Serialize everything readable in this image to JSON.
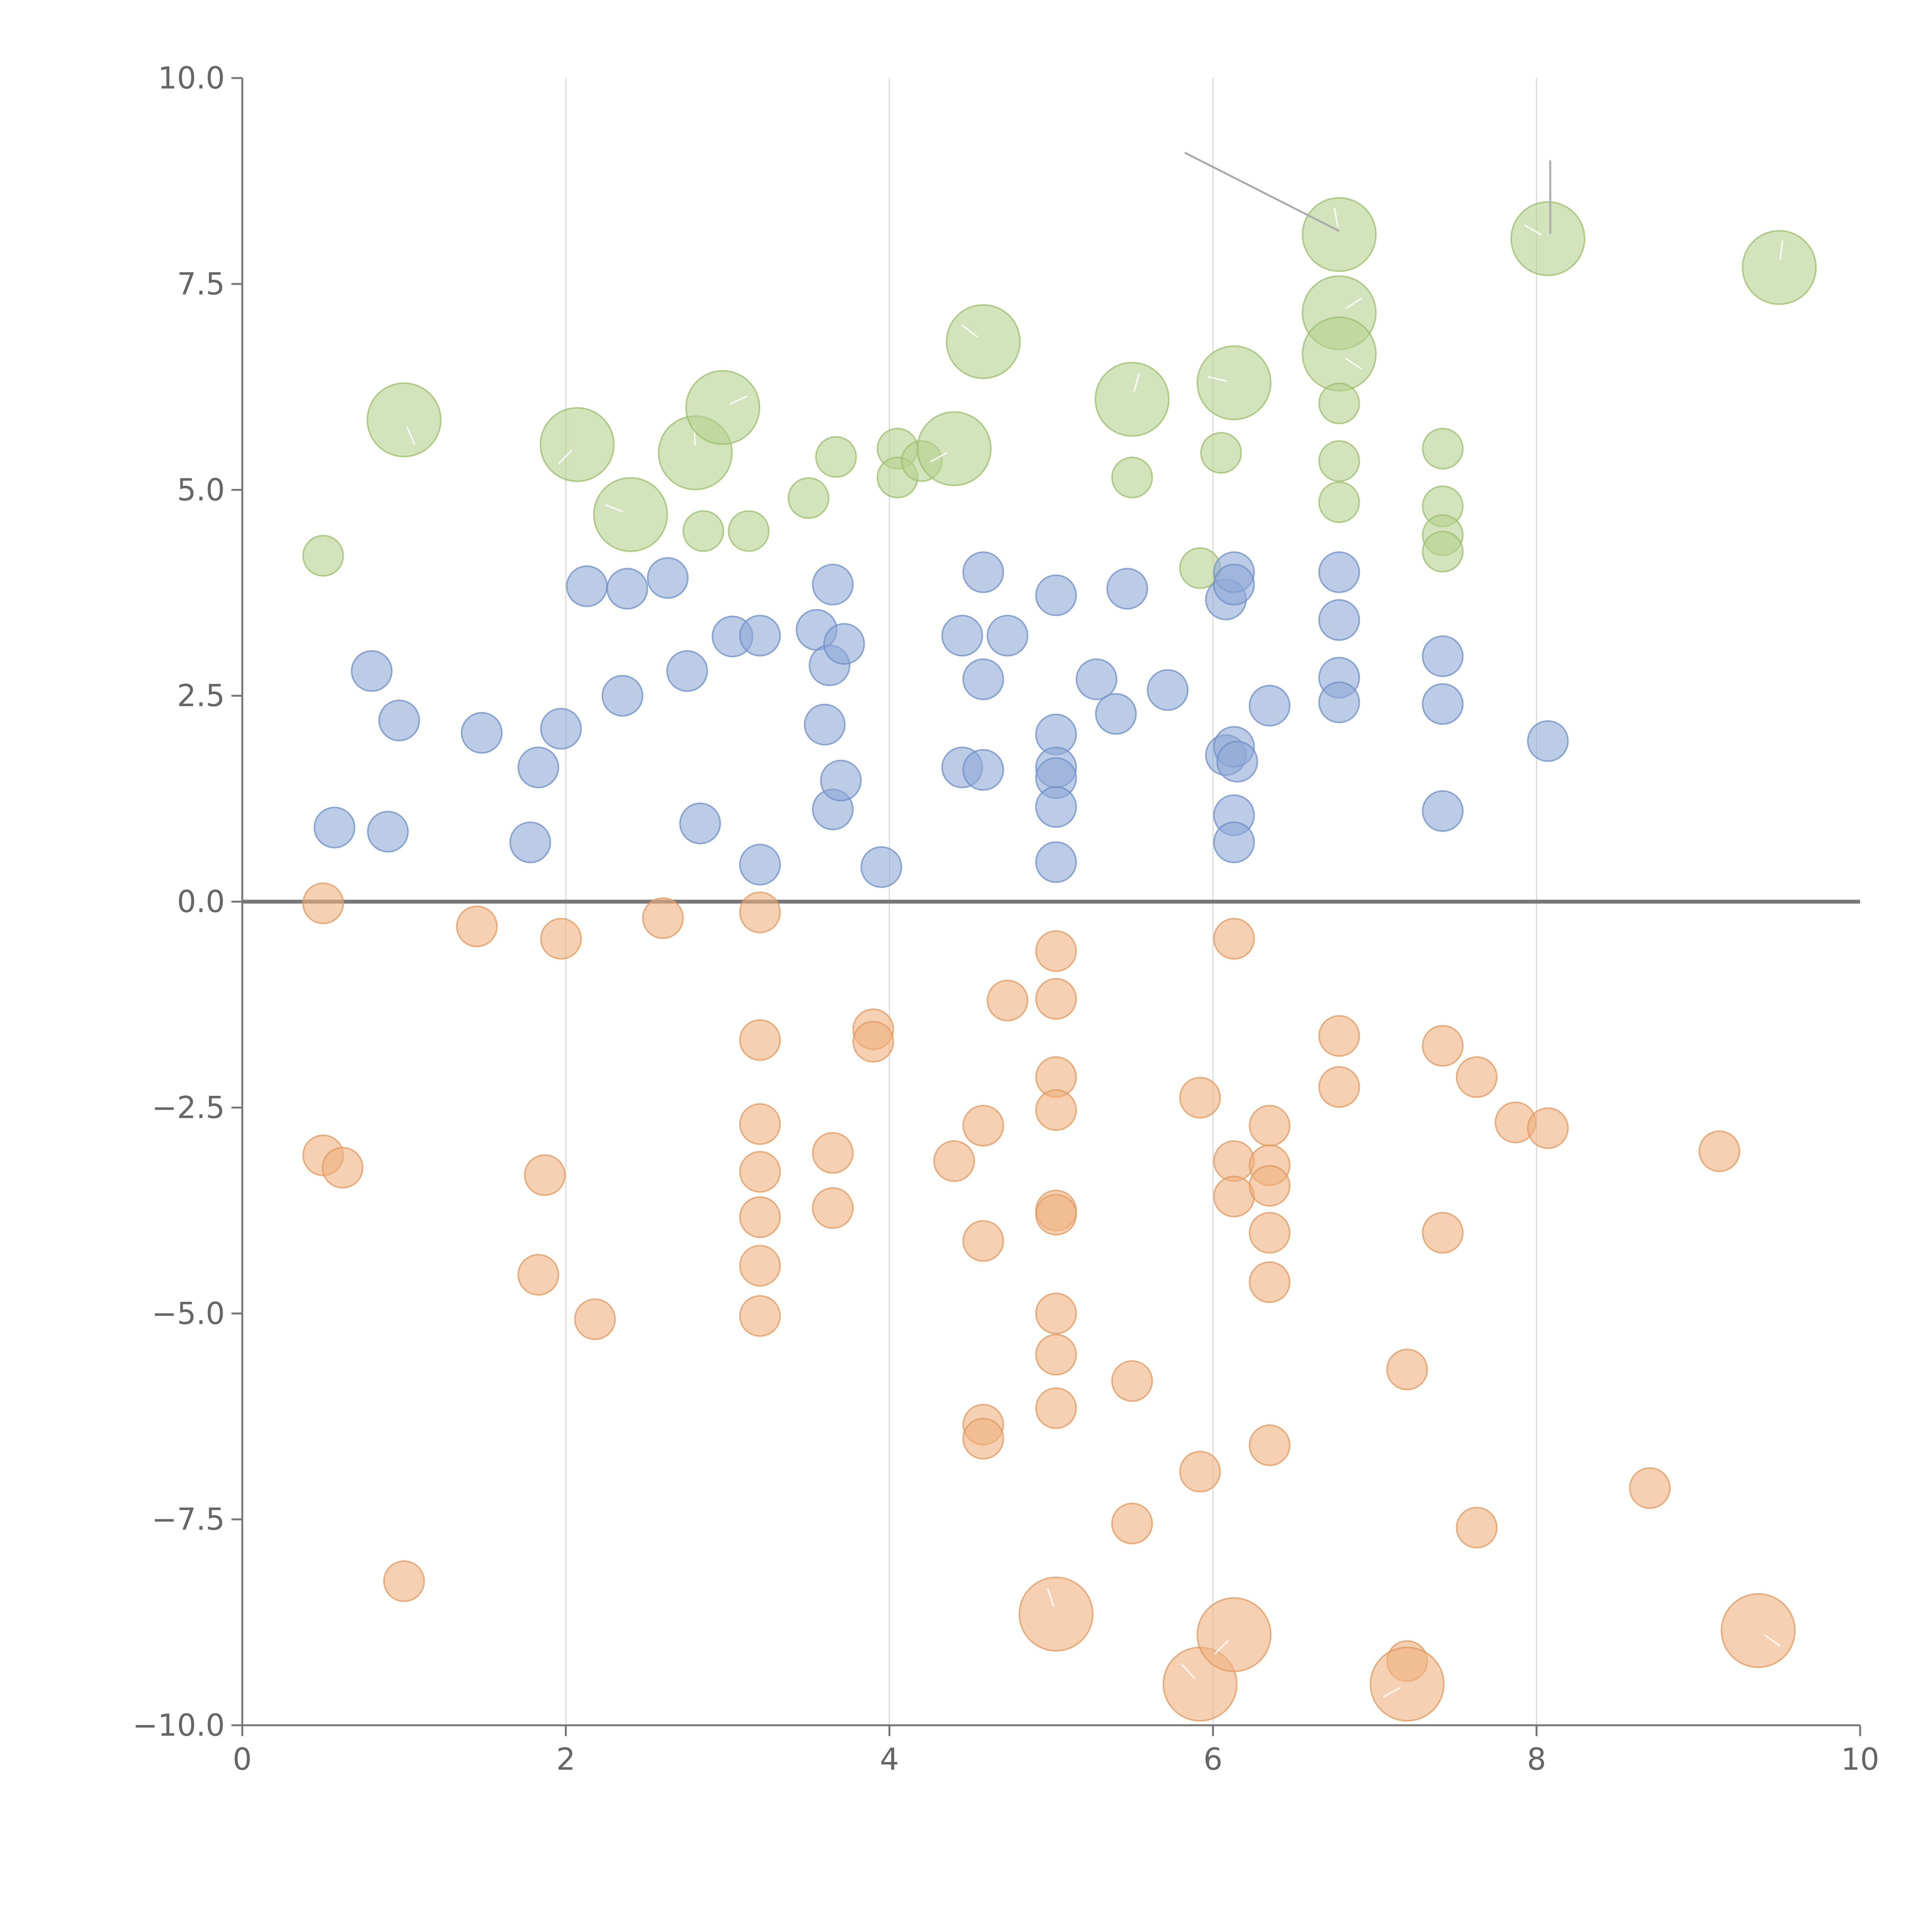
{
  "chart_data": {
    "type": "scatter",
    "title": "",
    "xlabel": "",
    "ylabel": "",
    "xlim": [
      0,
      10
    ],
    "ylim": [
      -10,
      10
    ],
    "x_ticks": [
      0,
      2,
      4,
      6,
      8,
      10
    ],
    "x_tick_labels": [
      "0",
      "2",
      "4",
      "6",
      "8",
      "10"
    ],
    "y_ticks": [
      10,
      7.5,
      5,
      2.5,
      0,
      -2.5,
      -5,
      -7.5,
      -10
    ],
    "y_tick_labels": [
      "10.0",
      "7.5",
      "5.0",
      "2.5",
      "0.0",
      "−2.5",
      "−5.0",
      "−7.5",
      "−10.0"
    ],
    "grid": "vertical",
    "reference_line_y": 0,
    "legend": "none",
    "series": [
      {
        "name": "green",
        "color": "#b6d18f",
        "stroke": "#9cbd6c",
        "points": [
          [
            0.5,
            4.2,
            1
          ],
          [
            1.0,
            5.85,
            2
          ],
          [
            2.07,
            5.55,
            2
          ],
          [
            2.4,
            4.7,
            2
          ],
          [
            2.8,
            5.45,
            2
          ],
          [
            2.97,
            6.0,
            2
          ],
          [
            2.85,
            4.5,
            1
          ],
          [
            3.13,
            4.5,
            1
          ],
          [
            3.5,
            4.9,
            1
          ],
          [
            3.67,
            5.4,
            1
          ],
          [
            4.05,
            5.5,
            1
          ],
          [
            4.05,
            5.15,
            1
          ],
          [
            4.2,
            5.35,
            1
          ],
          [
            4.4,
            5.5,
            2
          ],
          [
            4.58,
            6.8,
            2
          ],
          [
            5.5,
            6.1,
            2
          ],
          [
            5.5,
            5.15,
            1
          ],
          [
            5.92,
            4.05,
            1
          ],
          [
            6.05,
            5.45,
            1
          ],
          [
            6.13,
            6.3,
            2
          ],
          [
            6.78,
            8.1,
            2
          ],
          [
            6.78,
            7.15,
            2
          ],
          [
            6.78,
            6.65,
            2
          ],
          [
            6.78,
            6.05,
            1
          ],
          [
            6.78,
            5.35,
            1
          ],
          [
            6.78,
            4.85,
            1
          ],
          [
            7.42,
            5.5,
            1
          ],
          [
            7.42,
            4.8,
            1
          ],
          [
            7.42,
            4.45,
            1
          ],
          [
            7.42,
            4.25,
            1
          ],
          [
            8.07,
            8.05,
            2
          ],
          [
            9.5,
            7.7,
            2
          ]
        ]
      },
      {
        "name": "blue",
        "color": "#8fa9d6",
        "stroke": "#6e8fc6",
        "points": [
          [
            0.57,
            0.9,
            1
          ],
          [
            0.8,
            2.8,
            1
          ],
          [
            0.9,
            0.85,
            1
          ],
          [
            0.97,
            2.2,
            1
          ],
          [
            1.48,
            2.05,
            1
          ],
          [
            1.78,
            0.72,
            1
          ],
          [
            1.83,
            1.63,
            1
          ],
          [
            1.97,
            2.1,
            1
          ],
          [
            2.13,
            3.83,
            1
          ],
          [
            2.35,
            2.5,
            1
          ],
          [
            2.38,
            3.8,
            1
          ],
          [
            2.63,
            3.93,
            1
          ],
          [
            2.75,
            2.8,
            1
          ],
          [
            2.83,
            0.95,
            1
          ],
          [
            3.03,
            3.22,
            1
          ],
          [
            3.2,
            3.23,
            1
          ],
          [
            3.2,
            0.45,
            1
          ],
          [
            3.55,
            3.3,
            1
          ],
          [
            3.6,
            2.15,
            1
          ],
          [
            3.63,
            2.87,
            1
          ],
          [
            3.65,
            3.85,
            1
          ],
          [
            3.65,
            1.12,
            1
          ],
          [
            3.72,
            3.13,
            1
          ],
          [
            3.7,
            1.47,
            1
          ],
          [
            3.95,
            0.42,
            1
          ],
          [
            4.45,
            3.23,
            1
          ],
          [
            4.45,
            1.63,
            1
          ],
          [
            4.58,
            4.0,
            1
          ],
          [
            4.58,
            2.7,
            1
          ],
          [
            4.58,
            1.6,
            1
          ],
          [
            4.73,
            3.23,
            1
          ],
          [
            5.03,
            3.72,
            1
          ],
          [
            5.03,
            2.03,
            1
          ],
          [
            5.03,
            1.63,
            1
          ],
          [
            5.03,
            1.5,
            1
          ],
          [
            5.03,
            1.15,
            1
          ],
          [
            5.03,
            0.48,
            1
          ],
          [
            5.28,
            2.7,
            1
          ],
          [
            5.4,
            2.28,
            1
          ],
          [
            5.47,
            3.8,
            1
          ],
          [
            5.72,
            2.57,
            1
          ],
          [
            6.08,
            3.67,
            1
          ],
          [
            6.13,
            4.0,
            1
          ],
          [
            6.13,
            3.85,
            1
          ],
          [
            6.08,
            1.78,
            1
          ],
          [
            6.13,
            1.88,
            1
          ],
          [
            6.15,
            1.7,
            1
          ],
          [
            6.13,
            1.05,
            1
          ],
          [
            6.13,
            0.72,
            1
          ],
          [
            6.35,
            2.38,
            1
          ],
          [
            6.78,
            4.0,
            1
          ],
          [
            6.78,
            3.42,
            1
          ],
          [
            6.78,
            2.72,
            1
          ],
          [
            6.78,
            2.42,
            1
          ],
          [
            7.42,
            2.98,
            1
          ],
          [
            7.42,
            2.4,
            1
          ],
          [
            7.42,
            1.1,
            1
          ],
          [
            8.07,
            1.95,
            1
          ]
        ]
      },
      {
        "name": "orange",
        "color": "#eeb07f",
        "stroke": "#e09a60",
        "points": [
          [
            0.5,
            -0.02,
            1
          ],
          [
            1.45,
            -0.3,
            1
          ],
          [
            1.97,
            -0.45,
            1
          ],
          [
            2.6,
            -0.2,
            1
          ],
          [
            3.2,
            -0.13,
            1
          ],
          [
            0.5,
            -3.08,
            1
          ],
          [
            0.62,
            -3.23,
            1
          ],
          [
            1.0,
            -8.25,
            1
          ],
          [
            1.83,
            -4.53,
            1
          ],
          [
            1.87,
            -3.32,
            1
          ],
          [
            2.18,
            -5.07,
            1
          ],
          [
            3.2,
            -1.68,
            1
          ],
          [
            3.2,
            -2.7,
            1
          ],
          [
            3.2,
            -3.28,
            1
          ],
          [
            3.2,
            -3.83,
            1
          ],
          [
            3.2,
            -4.42,
            1
          ],
          [
            3.2,
            -5.03,
            1
          ],
          [
            3.65,
            -3.05,
            1
          ],
          [
            3.65,
            -3.72,
            1
          ],
          [
            3.9,
            -1.55,
            1
          ],
          [
            3.9,
            -1.7,
            1
          ],
          [
            4.4,
            -3.15,
            1
          ],
          [
            4.58,
            -2.72,
            1
          ],
          [
            4.58,
            -4.12,
            1
          ],
          [
            4.58,
            -6.35,
            1
          ],
          [
            4.58,
            -6.52,
            1
          ],
          [
            4.73,
            -1.2,
            1
          ],
          [
            5.03,
            -0.6,
            1
          ],
          [
            5.03,
            -1.18,
            1
          ],
          [
            5.03,
            -2.13,
            1
          ],
          [
            5.03,
            -2.53,
            1
          ],
          [
            5.03,
            -3.75,
            1
          ],
          [
            5.03,
            -3.8,
            1
          ],
          [
            5.03,
            -5.0,
            1
          ],
          [
            5.03,
            -5.5,
            1
          ],
          [
            5.03,
            -6.15,
            1
          ],
          [
            5.03,
            -8.65,
            2
          ],
          [
            5.5,
            -5.82,
            1
          ],
          [
            5.5,
            -7.55,
            1
          ],
          [
            5.92,
            -2.38,
            1
          ],
          [
            5.92,
            -6.92,
            1
          ],
          [
            5.92,
            -9.5,
            2
          ],
          [
            6.13,
            -0.45,
            1
          ],
          [
            6.13,
            -3.15,
            1
          ],
          [
            6.13,
            -3.58,
            1
          ],
          [
            6.13,
            -8.9,
            2
          ],
          [
            6.35,
            -2.72,
            1
          ],
          [
            6.35,
            -3.2,
            1
          ],
          [
            6.35,
            -3.45,
            1
          ],
          [
            6.35,
            -4.02,
            1
          ],
          [
            6.35,
            -4.62,
            1
          ],
          [
            6.35,
            -6.6,
            1
          ],
          [
            6.78,
            -1.63,
            1
          ],
          [
            6.78,
            -2.25,
            1
          ],
          [
            7.2,
            -5.68,
            1
          ],
          [
            7.2,
            -9.22,
            1
          ],
          [
            7.2,
            -9.5,
            2
          ],
          [
            7.42,
            -1.75,
            1
          ],
          [
            7.42,
            -4.02,
            1
          ],
          [
            7.63,
            -2.13,
            1
          ],
          [
            7.63,
            -7.6,
            1
          ],
          [
            7.87,
            -2.68,
            1
          ],
          [
            8.07,
            -2.75,
            1
          ],
          [
            8.7,
            -7.12,
            1
          ],
          [
            9.13,
            -3.03,
            1
          ],
          [
            9.37,
            -8.85,
            2
          ]
        ]
      }
    ]
  }
}
